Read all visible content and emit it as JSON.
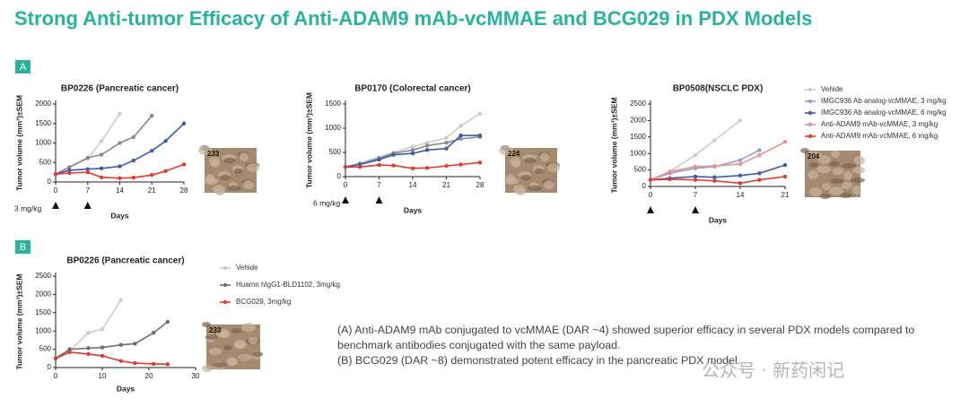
{
  "title": "Strong Anti-tumor Efficacy of Anti-ADAM9 mAb-vcMMAE and BCG029 in PDX Models",
  "sections": [
    "A",
    "B"
  ],
  "caption": [
    "(A) Anti-ADAM9 mAb conjugated to vcMMAE (DAR ~4) showed superior efficacy in several PDX models compared to benchmark antibodies conjugated with the same payload.",
    "(B) BCG029 (DAR ~8) demonstrated potent efficacy in the pancreatic PDX model."
  ],
  "watermark": "公众号 · 新药闲记",
  "chart_data": [
    {
      "type": "line",
      "title": "BP0226 (Pancreatic cancer)",
      "xlabel": "Days",
      "ylabel": "Tumor volume (mm³)±SEM",
      "x": [
        0,
        3,
        7,
        10,
        14,
        17,
        21,
        24,
        28
      ],
      "xlim": [
        0,
        28
      ],
      "xticks": [
        0,
        7,
        14,
        21,
        28
      ],
      "ylim": [
        0,
        2000
      ],
      "yticks": [
        0,
        500,
        1000,
        1500,
        2000
      ],
      "dose_days": [
        0,
        7
      ],
      "dose_label": "3 mg/kg",
      "image_label": "233",
      "series": [
        {
          "color": "#cccccc",
          "values": [
            200,
            380,
            600,
            1050,
            1750,
            null,
            null,
            null,
            null
          ]
        },
        {
          "color": "#8a8a8a",
          "values": [
            200,
            380,
            620,
            700,
            1000,
            1150,
            1700,
            null,
            null
          ]
        },
        {
          "color": "#3d5da8",
          "values": [
            200,
            300,
            330,
            350,
            400,
            550,
            800,
            1050,
            1500
          ]
        },
        {
          "color": "#e23b2e",
          "values": [
            200,
            230,
            250,
            120,
            100,
            110,
            180,
            280,
            450
          ]
        }
      ]
    },
    {
      "type": "line",
      "title": "BP0170 (Colorectal cancer)",
      "xlabel": "Days",
      "ylabel": "Tumor volume (mm³)±SEM",
      "x": [
        0,
        3,
        7,
        10,
        14,
        17,
        21,
        24,
        28
      ],
      "xlim": [
        0,
        28
      ],
      "xticks": [
        0,
        7,
        14,
        21,
        28
      ],
      "ylim": [
        0,
        1500
      ],
      "yticks": [
        0,
        500,
        1000,
        1500
      ],
      "dose_days": [
        0,
        7
      ],
      "dose_label": "6 mg/kg",
      "image_label": "224",
      "series": [
        {
          "color": "#cccccc",
          "values": [
            200,
            280,
            400,
            500,
            620,
            700,
            800,
            1050,
            1300
          ]
        },
        {
          "color": "#8a8a8a",
          "values": [
            200,
            260,
            380,
            480,
            550,
            640,
            700,
            780,
            820
          ]
        },
        {
          "color": "#3d5da8",
          "values": [
            200,
            250,
            350,
            450,
            480,
            550,
            580,
            850,
            850
          ]
        },
        {
          "color": "#e23b2e",
          "values": [
            200,
            200,
            240,
            230,
            170,
            180,
            220,
            250,
            290
          ]
        }
      ]
    },
    {
      "type": "line",
      "title": "BP0508(NSCLC  PDX)",
      "xlabel": "Days",
      "ylabel": "Tumor volume (mm³)±SEM",
      "x": [
        0,
        3,
        7,
        10,
        14,
        17,
        21
      ],
      "xlim": [
        0,
        21
      ],
      "xticks": [
        0,
        7,
        14,
        21
      ],
      "ylim": [
        0,
        2500
      ],
      "yticks": [
        0,
        500,
        1000,
        1500,
        2000,
        2500
      ],
      "dose_days": [
        0,
        7
      ],
      "image_label": "204",
      "series": [
        {
          "name": "Vehide",
          "color": "#cccccc",
          "values": [
            200,
            450,
            950,
            1400,
            2000,
            null,
            null
          ]
        },
        {
          "name": "IMGC936 Ab analog-vcMMAE, 3 mg/kg",
          "color": "#8e9fd4",
          "values": [
            200,
            400,
            550,
            600,
            800,
            1100,
            null
          ]
        },
        {
          "name": "IMGC936 Ab analog-vcMMAE, 6 mg/kg",
          "color": "#3d5da8",
          "values": [
            200,
            250,
            300,
            280,
            330,
            400,
            650
          ]
        },
        {
          "name": "Anti-ADAM9 mAb-vcMMAE, 3 mg/kg",
          "color": "#ef8f8f",
          "values": [
            200,
            450,
            600,
            620,
            680,
            950,
            1350
          ]
        },
        {
          "name": "Anti-ADAM9 mAb-vcMMAE, 6 mg/kg",
          "color": "#e23b2e",
          "values": [
            200,
            220,
            200,
            170,
            100,
            200,
            300
          ]
        }
      ]
    },
    {
      "type": "line",
      "title": "BP0226 (Pancreatic cancer)",
      "xlabel": "Days",
      "ylabel": "Tumor volume (mm³)±SEM",
      "x": [
        0,
        3,
        7,
        10,
        14,
        17,
        21,
        24
      ],
      "xlim": [
        0,
        30
      ],
      "xticks": [
        0,
        10,
        20,
        30
      ],
      "ylim": [
        0,
        2500
      ],
      "yticks": [
        0,
        500,
        1000,
        1500,
        2000,
        2500
      ],
      "image_label": "233",
      "series": [
        {
          "name": "Vehide",
          "color": "#cccccc",
          "values": [
            250,
            450,
            950,
            1050,
            1850,
            null,
            null,
            null
          ]
        },
        {
          "name": "Huamn hIgG1-BLD1102, 3mg/kg",
          "color": "#6e6e6e",
          "values": [
            250,
            500,
            530,
            550,
            620,
            650,
            950,
            1250
          ]
        },
        {
          "name": "BCG029, 3mg/kg",
          "color": "#e23b2e",
          "values": [
            250,
            420,
            370,
            320,
            180,
            120,
            100,
            90
          ]
        }
      ]
    }
  ]
}
